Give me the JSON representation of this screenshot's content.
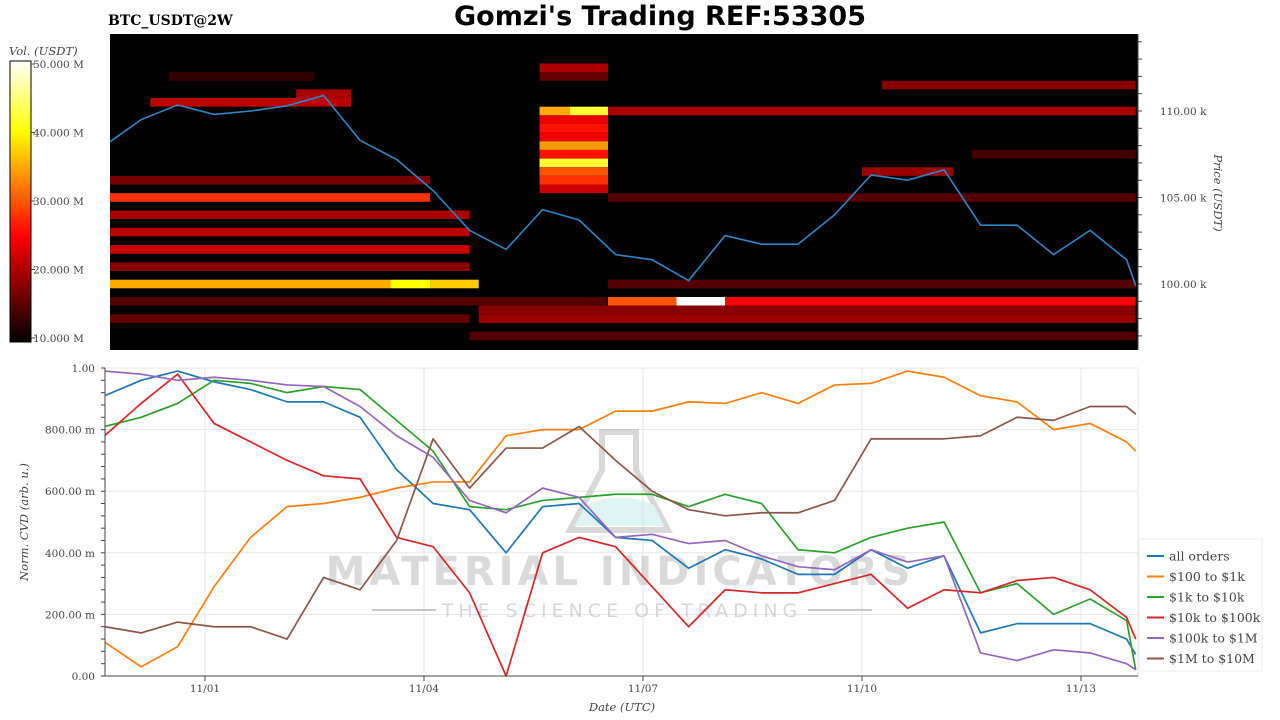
{
  "header": {
    "title": "Gomzi's Trading REF:53305",
    "symbol": "BTC_USDT@2W"
  },
  "watermark": {
    "line1": "MATERIAL INDICATORS",
    "line2": "THE SCIENCE OF TRADING"
  },
  "colors": {
    "all orders": "#1f77b4",
    "$100 to $1k": "#ff7f0e",
    "$1k to $10k": "#2ca02c",
    "$10k to $100k": "#d62728",
    "$100k to $1M": "#9467bd",
    "$1M to $10M": "#8c564b",
    "price_line": "#2f86c4"
  },
  "chart_data": [
    {
      "type": "heatmap",
      "title": "BTC_USDT@2W",
      "colormap": "hot",
      "colorbar": {
        "label": "Vol. (USDT)",
        "range": [
          10,
          50
        ],
        "ticks": [
          50,
          40,
          30,
          20,
          10
        ],
        "tick_labels": [
          "50.000 M",
          "40.000 M",
          "30.000 M",
          "20.000 M",
          "10.000 M"
        ]
      },
      "y_axis": {
        "label": "Price (USDT)",
        "side": "right",
        "range_k": [
          96.2,
          114.4
        ],
        "ticks_k": [
          100,
          105,
          110
        ],
        "tick_labels": [
          "100.00 k",
          "105.00 k",
          "110.00 k"
        ]
      },
      "x_range": [
        "10/30 15:00",
        "11/13 18:00"
      ],
      "cells_note_units": "price in k USDT, volume in M USDT",
      "walls": [
        {
          "price": 112.0,
          "from": "10/31 12:00",
          "to": "11/02 12:00",
          "vol": 13
        },
        {
          "price": 100.0,
          "from": "10/30 15:00",
          "to": "11/03 13:00",
          "vol": 35
        },
        {
          "price": 100.0,
          "from": "11/03 13:00",
          "to": "11/04 02:00",
          "vol": 40
        },
        {
          "price": 100.0,
          "from": "11/04 02:00",
          "to": "11/04 18:00",
          "vol": 37
        },
        {
          "price": 105.0,
          "from": "10/30 15:00",
          "to": "11/04 02:00",
          "vol": 28
        },
        {
          "price": 106.0,
          "from": "10/30 15:00",
          "to": "11/04 02:00",
          "vol": 17
        },
        {
          "price": 104.0,
          "from": "10/30 15:00",
          "to": "11/04 15:00",
          "vol": 20
        },
        {
          "price": 103.0,
          "from": "10/30 15:00",
          "to": "11/04 15:00",
          "vol": 21
        },
        {
          "price": 102.0,
          "from": "10/30 15:00",
          "to": "11/04 15:00",
          "vol": 22
        },
        {
          "price": 101.0,
          "from": "10/30 15:00",
          "to": "11/04 15:00",
          "vol": 18
        },
        {
          "price": 99.0,
          "from": "10/30 15:00",
          "to": "11/06 12:00",
          "vol": 15
        },
        {
          "price": 98.0,
          "from": "10/30 15:00",
          "to": "11/04 15:00",
          "vol": 16
        },
        {
          "price": 110.5,
          "from": "10/31 06:00",
          "to": "11/03 00:00",
          "vol": 21
        },
        {
          "price": 111.0,
          "from": "11/02 06:00",
          "to": "11/03 00:00",
          "vol": 20
        },
        {
          "price": 97.0,
          "from": "11/04 15:00",
          "to": "11/13 18:00",
          "vol": 15
        },
        {
          "price": 112.5,
          "from": "11/05 14:00",
          "to": "11/06 12:30",
          "vol": 20
        },
        {
          "price": 112.0,
          "from": "11/05 14:00",
          "to": "11/06 12:30",
          "vol": 16
        },
        {
          "price": 110.0,
          "from": "11/05 14:00",
          "to": "11/06 00:00",
          "vol": 35
        },
        {
          "price": 110.0,
          "from": "11/06 00:00",
          "to": "11/06 12:30",
          "vol": 42
        },
        {
          "price": 109.5,
          "from": "11/05 14:00",
          "to": "11/06 12:30",
          "vol": 24
        },
        {
          "price": 109.0,
          "from": "11/05 14:00",
          "to": "11/06 12:30",
          "vol": 26
        },
        {
          "price": 108.5,
          "from": "11/05 14:00",
          "to": "11/06 12:30",
          "vol": 24
        },
        {
          "price": 108.0,
          "from": "11/05 14:00",
          "to": "11/06 12:30",
          "vol": 34
        },
        {
          "price": 107.5,
          "from": "11/05 14:00",
          "to": "11/06 12:30",
          "vol": 26
        },
        {
          "price": 107.0,
          "from": "11/05 14:00",
          "to": "11/06 12:30",
          "vol": 42
        },
        {
          "price": 106.5,
          "from": "11/05 14:00",
          "to": "11/06 12:30",
          "vol": 30
        },
        {
          "price": 106.0,
          "from": "11/05 14:00",
          "to": "11/06 12:30",
          "vol": 28
        },
        {
          "price": 105.5,
          "from": "11/05 14:00",
          "to": "11/06 12:30",
          "vol": 22
        },
        {
          "price": 110.0,
          "from": "11/06 12:30",
          "to": "11/13 18:00",
          "vol": 20
        },
        {
          "price": 105.0,
          "from": "11/06 12:30",
          "to": "11/13 18:00",
          "vol": 15
        },
        {
          "price": 111.5,
          "from": "11/10 06:30",
          "to": "11/13 18:00",
          "vol": 18
        },
        {
          "price": 107.5,
          "from": "11/11 12:00",
          "to": "11/13 18:00",
          "vol": 14
        },
        {
          "price": 106.5,
          "from": "11/10 00:00",
          "to": "11/11 06:00",
          "vol": 19
        },
        {
          "price": 100.0,
          "from": "11/06 12:30",
          "to": "11/13 18:00",
          "vol": 15
        },
        {
          "price": 99.0,
          "from": "11/06 12:30",
          "to": "11/07 11:00",
          "vol": 30
        },
        {
          "price": 99.0,
          "from": "11/07 11:00",
          "to": "11/08 03:00",
          "vol": 50
        },
        {
          "price": 99.0,
          "from": "11/08 03:00",
          "to": "11/13 18:00",
          "vol": 25
        },
        {
          "price": 98.5,
          "from": "11/04 18:00",
          "to": "11/13 18:00",
          "vol": 18
        },
        {
          "price": 98.0,
          "from": "11/04 18:00",
          "to": "11/13 18:00",
          "vol": 19
        }
      ],
      "price_series": {
        "x": [
          "10/30 15:00",
          "10/31 03:00",
          "10/31 15:00",
          "11/01 03:00",
          "11/01 15:00",
          "11/02 03:00",
          "11/02 15:00",
          "11/03 03:00",
          "11/03 15:00",
          "11/04 03:00",
          "11/04 15:00",
          "11/05 03:00",
          "11/05 15:00",
          "11/06 03:00",
          "11/06 15:00",
          "11/07 03:00",
          "11/07 15:00",
          "11/08 03:00",
          "11/08 15:00",
          "11/09 03:00",
          "11/09 15:00",
          "11/10 03:00",
          "11/10 15:00",
          "11/11 03:00",
          "11/11 15:00",
          "11/12 03:00",
          "11/12 15:00",
          "11/13 03:00",
          "11/13 15:00",
          "11/13 18:00"
        ],
        "price_k": [
          108.0,
          109.5,
          110.35,
          109.8,
          110.0,
          110.3,
          110.9,
          108.3,
          107.2,
          105.4,
          103.1,
          102.0,
          104.3,
          103.7,
          101.7,
          101.4,
          100.2,
          102.8,
          102.3,
          102.3,
          104.0,
          106.3,
          106.0,
          106.6,
          103.4,
          103.4,
          101.7,
          103.1,
          101.4,
          99.9
        ]
      }
    },
    {
      "type": "line",
      "xlabel": "Date (UTC)",
      "ylabel": "Norm. CVD (arb. u.)",
      "ylim": [
        0,
        1
      ],
      "y_ticks": [
        0,
        0.2,
        0.4,
        0.6,
        0.8,
        1.0
      ],
      "y_tick_labels": [
        "0.00",
        "200.00 m",
        "400.00 m",
        "600.00 m",
        "800.00 m",
        "1.00"
      ],
      "x_ticks": [
        "11/01 00:00",
        "11/04 00:00",
        "11/07 00:00",
        "11/10 00:00",
        "11/13 00:00"
      ],
      "x_tick_labels": [
        "11/01",
        "11/04",
        "11/07",
        "11/10",
        "11/13"
      ],
      "x_range": [
        "10/30 15:00",
        "11/13 18:00"
      ],
      "grid": true,
      "legend": "right",
      "x": [
        "10/30 15:00",
        "10/31 03:00",
        "10/31 15:00",
        "11/01 03:00",
        "11/01 15:00",
        "11/02 03:00",
        "11/02 15:00",
        "11/03 03:00",
        "11/03 15:00",
        "11/04 03:00",
        "11/04 15:00",
        "11/05 03:00",
        "11/05 15:00",
        "11/06 03:00",
        "11/06 15:00",
        "11/07 03:00",
        "11/07 15:00",
        "11/08 03:00",
        "11/08 15:00",
        "11/09 03:00",
        "11/09 15:00",
        "11/10 03:00",
        "11/10 15:00",
        "11/11 03:00",
        "11/11 15:00",
        "11/12 03:00",
        "11/12 15:00",
        "11/13 03:00",
        "11/13 15:00",
        "11/13 18:00"
      ],
      "series": [
        {
          "name": "all orders",
          "values": [
            0.91,
            0.96,
            0.99,
            0.955,
            0.93,
            0.89,
            0.89,
            0.84,
            0.67,
            0.56,
            0.54,
            0.4,
            0.55,
            0.56,
            0.45,
            0.44,
            0.35,
            0.41,
            0.38,
            0.33,
            0.33,
            0.41,
            0.35,
            0.39,
            0.14,
            0.17,
            0.17,
            0.17,
            0.12,
            0.07
          ]
        },
        {
          "name": "$100 to $1k",
          "values": [
            0.11,
            0.03,
            0.095,
            0.29,
            0.45,
            0.55,
            0.56,
            0.58,
            0.61,
            0.63,
            0.63,
            0.78,
            0.8,
            0.8,
            0.86,
            0.86,
            0.89,
            0.885,
            0.92,
            0.885,
            0.945,
            0.95,
            0.99,
            0.97,
            0.91,
            0.89,
            0.8,
            0.82,
            0.76,
            0.73
          ]
        },
        {
          "name": "$1k to $10k",
          "values": [
            0.81,
            0.84,
            0.885,
            0.96,
            0.95,
            0.92,
            0.94,
            0.93,
            0.83,
            0.73,
            0.55,
            0.54,
            0.57,
            0.58,
            0.59,
            0.59,
            0.55,
            0.59,
            0.56,
            0.41,
            0.4,
            0.45,
            0.48,
            0.5,
            0.27,
            0.3,
            0.2,
            0.25,
            0.18,
            0.02
          ]
        },
        {
          "name": "$10k to $100k",
          "values": [
            0.78,
            0.885,
            0.98,
            0.82,
            0.76,
            0.7,
            0.65,
            0.64,
            0.45,
            0.42,
            0.27,
            0.0,
            0.4,
            0.45,
            0.42,
            0.29,
            0.16,
            0.28,
            0.27,
            0.27,
            0.3,
            0.33,
            0.22,
            0.28,
            0.27,
            0.31,
            0.32,
            0.28,
            0.19,
            0.12
          ]
        },
        {
          "name": "$100k to $1M",
          "values": [
            0.99,
            0.98,
            0.96,
            0.97,
            0.96,
            0.945,
            0.94,
            0.875,
            0.78,
            0.71,
            0.57,
            0.53,
            0.61,
            0.58,
            0.45,
            0.46,
            0.43,
            0.44,
            0.39,
            0.355,
            0.345,
            0.41,
            0.37,
            0.39,
            0.075,
            0.05,
            0.085,
            0.075,
            0.04,
            0.02
          ]
        },
        {
          "name": "$1M to $10M",
          "values": [
            0.16,
            0.14,
            0.175,
            0.16,
            0.16,
            0.12,
            0.32,
            0.28,
            0.44,
            0.77,
            0.61,
            0.74,
            0.74,
            0.81,
            0.7,
            0.6,
            0.54,
            0.52,
            0.53,
            0.53,
            0.57,
            0.77,
            0.77,
            0.77,
            0.78,
            0.84,
            0.83,
            0.875,
            0.875,
            0.85
          ]
        }
      ]
    }
  ]
}
